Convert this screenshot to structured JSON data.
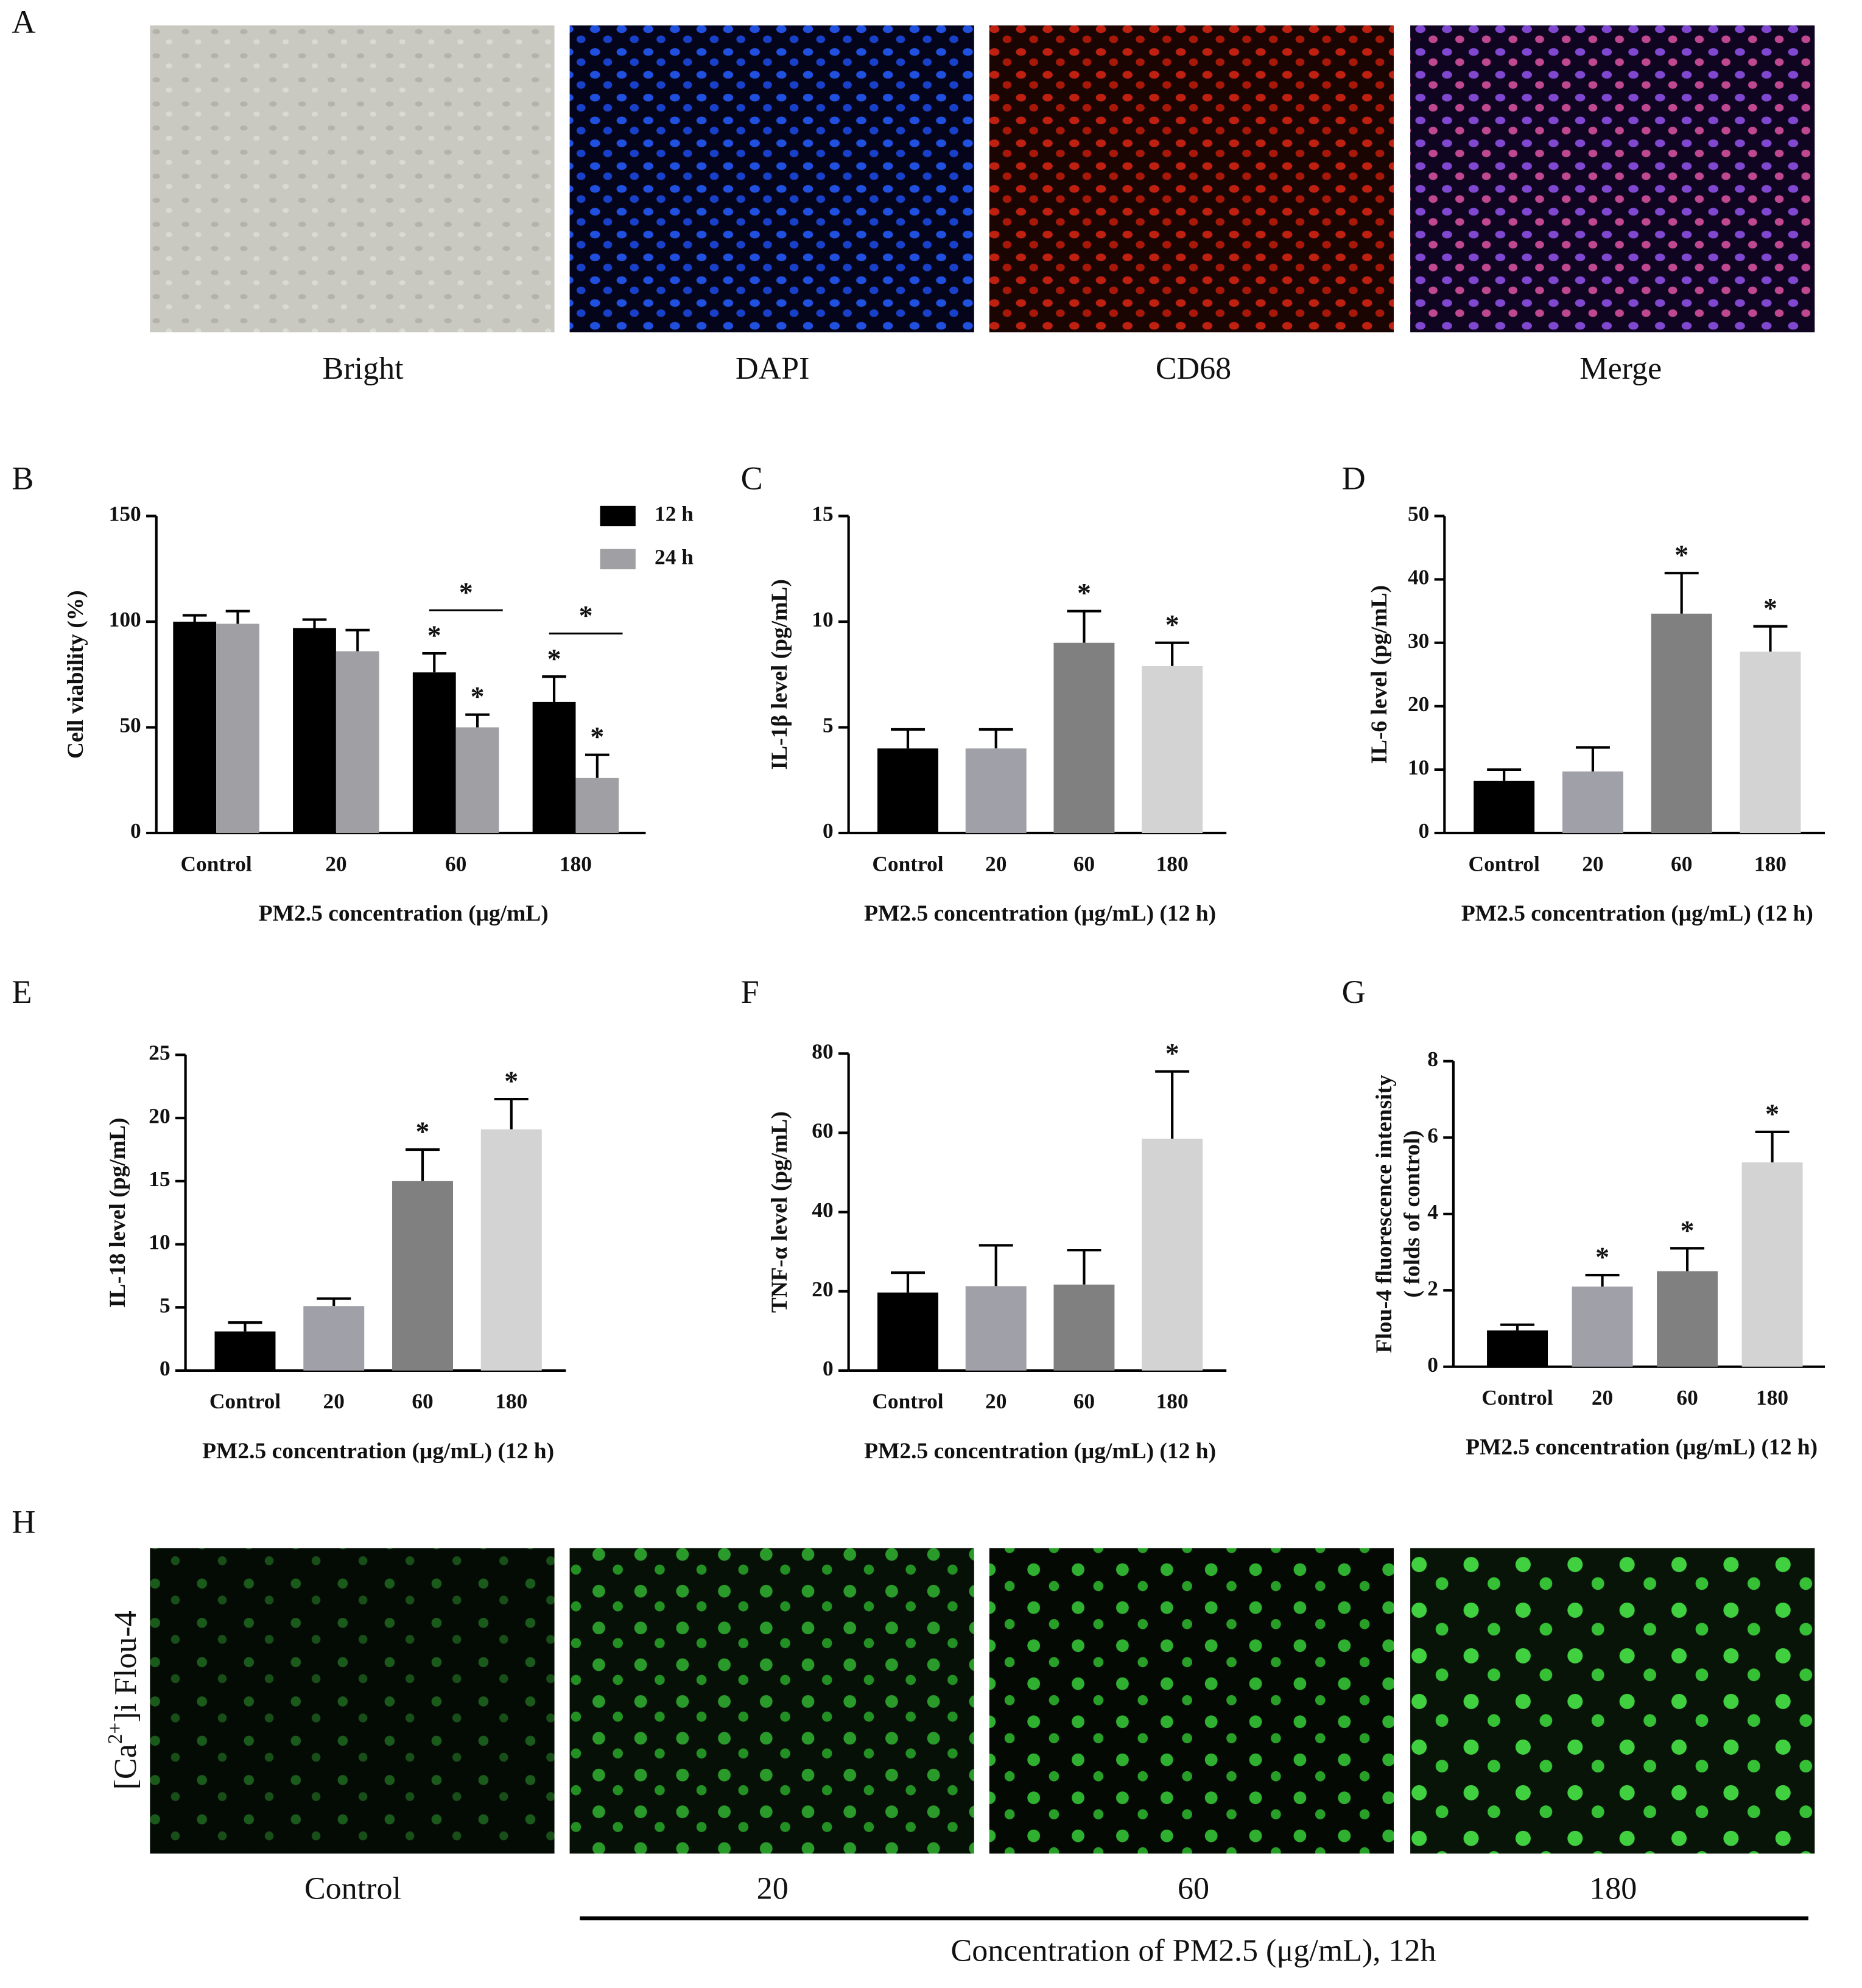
{
  "image_panel_a": {
    "letter": "A",
    "captions": [
      "Bright",
      "DAPI",
      "CD68",
      "Merge"
    ]
  },
  "image_panel_h": {
    "letter": "H",
    "row_label_parts": [
      "[Ca",
      "2+",
      "]i Flou-4"
    ],
    "captions": [
      "Control",
      "20",
      "60",
      "180"
    ],
    "group_label": "Concentration of PM2.5 (μg/mL), 12h"
  },
  "chart_data": [
    {
      "type": "grouped_bar",
      "label": "B",
      "y_label": "Cell viability (%)",
      "x_label": "PM2.5 concentration (μg/mL)",
      "categories": [
        "Control",
        "20",
        "60",
        "180"
      ],
      "ylim": [
        0,
        150
      ],
      "yticks": [
        0,
        50,
        100,
        150
      ],
      "series": [
        {
          "name": "12 h",
          "color": "#000000",
          "values": [
            100,
            97,
            76,
            62
          ],
          "errors": [
            3,
            4,
            9,
            12
          ],
          "significance": [
            null,
            null,
            "*",
            "*"
          ]
        },
        {
          "name": "24 h",
          "color": "#a0a0a4",
          "values": [
            99,
            86,
            50,
            26
          ],
          "errors": [
            6,
            10,
            6,
            11
          ],
          "significance": [
            null,
            null,
            "*",
            "*"
          ]
        }
      ],
      "comparison_significance": [
        null,
        null,
        "*",
        "*"
      ]
    },
    {
      "type": "bar",
      "label": "C",
      "y_label": "IL-1β level (pg/mL)",
      "x_label": "PM2.5 concentration (μg/mL) (12 h)",
      "categories": [
        "Control",
        "20",
        "60",
        "180"
      ],
      "ylim": [
        0,
        15
      ],
      "yticks": [
        0,
        5,
        10,
        15
      ],
      "values": [
        4.0,
        4.0,
        9.0,
        7.9
      ],
      "errors": [
        0.9,
        0.9,
        1.5,
        1.1
      ],
      "colors": [
        "#000000",
        "#a0a0a8",
        "#808080",
        "#d3d3d3"
      ],
      "significance": [
        null,
        null,
        "*",
        "*"
      ]
    },
    {
      "type": "bar",
      "label": "D",
      "y_label": "IL-6 level (pg/mL)",
      "x_label": "PM2.5 concentration (μg/mL) (12 h)",
      "categories": [
        "Control",
        "20",
        "60",
        "180"
      ],
      "ylim": [
        0,
        50
      ],
      "yticks": [
        0,
        10,
        20,
        30,
        40,
        50
      ],
      "values": [
        8.2,
        9.7,
        34.6,
        28.6
      ],
      "errors": [
        1.8,
        3.8,
        6.4,
        4.0
      ],
      "colors": [
        "#000000",
        "#a0a0a8",
        "#808080",
        "#d3d3d3"
      ],
      "significance": [
        null,
        null,
        "*",
        "*"
      ]
    },
    {
      "type": "bar",
      "label": "E",
      "y_label": "IL-18 level (pg/mL)",
      "x_label": "PM2.5 concentration (μg/mL) (12 h)",
      "categories": [
        "Control",
        "20",
        "60",
        "180"
      ],
      "ylim": [
        0,
        25
      ],
      "yticks": [
        0,
        5,
        10,
        15,
        20,
        25
      ],
      "values": [
        3.1,
        5.1,
        15.0,
        19.1
      ],
      "errors": [
        0.7,
        0.6,
        2.5,
        2.4
      ],
      "colors": [
        "#000000",
        "#a0a0a8",
        "#808080",
        "#d3d3d3"
      ],
      "significance": [
        null,
        null,
        "*",
        "*"
      ]
    },
    {
      "type": "bar",
      "label": "F",
      "y_label": "TNF-α level (pg/mL)",
      "x_label": "PM2.5 concentration (μg/mL) (12 h)",
      "categories": [
        "Control",
        "20",
        "60",
        "180"
      ],
      "ylim": [
        0,
        80
      ],
      "yticks": [
        0,
        20,
        40,
        60,
        80
      ],
      "values": [
        19.7,
        21.3,
        21.7,
        58.5
      ],
      "errors": [
        5,
        10.3,
        8.7,
        17
      ],
      "colors": [
        "#000000",
        "#a0a0a8",
        "#808080",
        "#d3d3d3"
      ],
      "significance": [
        null,
        null,
        null,
        "*"
      ]
    },
    {
      "type": "bar",
      "label": "G",
      "y_label": [
        "Flou-4 fluorescence intensity",
        "( folds of control)"
      ],
      "x_label": "PM2.5 concentration (μg/mL) (12 h)",
      "categories": [
        "Control",
        "20",
        "60",
        "180"
      ],
      "ylim": [
        0,
        8
      ],
      "yticks": [
        0,
        2,
        4,
        6,
        8
      ],
      "values": [
        0.95,
        2.1,
        2.5,
        5.35
      ],
      "errors": [
        0.15,
        0.3,
        0.6,
        0.8
      ],
      "colors": [
        "#000000",
        "#a0a0a8",
        "#808080",
        "#d3d3d3"
      ],
      "significance": [
        null,
        "*",
        "*",
        "*"
      ]
    }
  ]
}
